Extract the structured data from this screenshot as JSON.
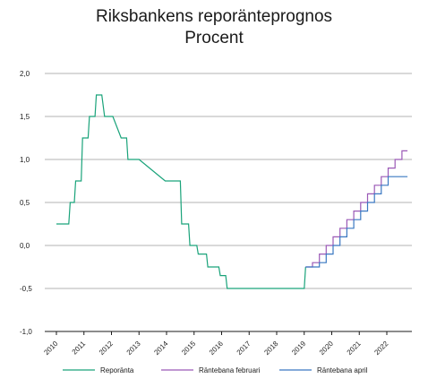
{
  "chart_data": {
    "type": "line",
    "title": "Riksbankens reporänteprognos",
    "subtitle": "Procent",
    "xlabel": "",
    "ylabel": "",
    "xlim": [
      2010,
      2022.5
    ],
    "ylim": [
      -1.0,
      2.0
    ],
    "yticks": [
      -1.0,
      -0.5,
      0.0,
      0.5,
      1.0,
      1.5,
      2.0
    ],
    "ytick_labels": [
      "-1,0",
      "-0,5",
      "0,0",
      "0,5",
      "1,0",
      "1,5",
      "2,0"
    ],
    "xticks": [
      2010,
      2011,
      2012,
      2013,
      2014,
      2015,
      2016,
      2017,
      2018,
      2019,
      2020,
      2021,
      2022
    ],
    "xtick_labels": [
      "2010",
      "2011",
      "2012",
      "2013",
      "2014",
      "2015",
      "2016",
      "2017",
      "2018",
      "2019",
      "2020",
      "2021",
      "2022"
    ],
    "grid": "horizontal",
    "legend_position": "bottom",
    "series": [
      {
        "name": "Reporänta",
        "color": "#1aa37a",
        "points": [
          [
            2010.0,
            0.25
          ],
          [
            2010.45,
            0.25
          ],
          [
            2010.5,
            0.5
          ],
          [
            2010.65,
            0.5
          ],
          [
            2010.7,
            0.75
          ],
          [
            2010.9,
            0.75
          ],
          [
            2010.95,
            1.25
          ],
          [
            2011.15,
            1.25
          ],
          [
            2011.2,
            1.5
          ],
          [
            2011.4,
            1.5
          ],
          [
            2011.45,
            1.75
          ],
          [
            2011.55,
            1.75
          ],
          [
            2011.65,
            1.75
          ],
          [
            2011.75,
            1.5
          ],
          [
            2011.95,
            1.5
          ],
          [
            2012.0,
            1.5
          ],
          [
            2012.05,
            1.5
          ],
          [
            2012.35,
            1.25
          ],
          [
            2012.55,
            1.25
          ],
          [
            2012.6,
            1.0
          ],
          [
            2012.95,
            1.0
          ],
          [
            2013.0,
            1.0
          ],
          [
            2013.95,
            0.75
          ],
          [
            2014.5,
            0.75
          ],
          [
            2014.55,
            0.25
          ],
          [
            2014.8,
            0.25
          ],
          [
            2014.85,
            0.0
          ],
          [
            2015.1,
            0.0
          ],
          [
            2015.15,
            -0.1
          ],
          [
            2015.45,
            -0.1
          ],
          [
            2015.5,
            -0.25
          ],
          [
            2015.9,
            -0.25
          ],
          [
            2015.95,
            -0.35
          ],
          [
            2016.15,
            -0.35
          ],
          [
            2016.2,
            -0.5
          ],
          [
            2019.0,
            -0.5
          ],
          [
            2019.05,
            -0.25
          ]
        ]
      },
      {
        "name": "Räntebana februari",
        "color": "#9b59b6",
        "points": [
          [
            2019.05,
            -0.25
          ],
          [
            2019.3,
            -0.25
          ],
          [
            2019.3,
            -0.2
          ],
          [
            2019.55,
            -0.2
          ],
          [
            2019.55,
            -0.1
          ],
          [
            2019.8,
            -0.1
          ],
          [
            2019.8,
            0.0
          ],
          [
            2020.05,
            0.0
          ],
          [
            2020.05,
            0.1
          ],
          [
            2020.3,
            0.1
          ],
          [
            2020.3,
            0.2
          ],
          [
            2020.55,
            0.2
          ],
          [
            2020.55,
            0.3
          ],
          [
            2020.8,
            0.3
          ],
          [
            2020.8,
            0.4
          ],
          [
            2021.05,
            0.4
          ],
          [
            2021.05,
            0.5
          ],
          [
            2021.3,
            0.5
          ],
          [
            2021.3,
            0.6
          ],
          [
            2021.55,
            0.6
          ],
          [
            2021.55,
            0.7
          ],
          [
            2021.8,
            0.7
          ],
          [
            2021.8,
            0.8
          ],
          [
            2022.05,
            0.8
          ],
          [
            2022.05,
            0.9
          ],
          [
            2022.3,
            0.9
          ],
          [
            2022.3,
            1.0
          ],
          [
            2022.55,
            1.0
          ],
          [
            2022.55,
            1.1
          ],
          [
            2022.75,
            1.1
          ]
        ]
      },
      {
        "name": "Räntebana april",
        "color": "#3a78c2",
        "points": [
          [
            2019.05,
            -0.25
          ],
          [
            2019.55,
            -0.25
          ],
          [
            2019.55,
            -0.2
          ],
          [
            2019.8,
            -0.2
          ],
          [
            2019.8,
            -0.1
          ],
          [
            2020.05,
            -0.1
          ],
          [
            2020.05,
            0.0
          ],
          [
            2020.3,
            0.0
          ],
          [
            2020.3,
            0.1
          ],
          [
            2020.55,
            0.1
          ],
          [
            2020.55,
            0.2
          ],
          [
            2020.8,
            0.2
          ],
          [
            2020.8,
            0.3
          ],
          [
            2021.05,
            0.3
          ],
          [
            2021.05,
            0.4
          ],
          [
            2021.3,
            0.4
          ],
          [
            2021.3,
            0.5
          ],
          [
            2021.55,
            0.5
          ],
          [
            2021.55,
            0.6
          ],
          [
            2021.8,
            0.6
          ],
          [
            2021.8,
            0.7
          ],
          [
            2022.05,
            0.7
          ],
          [
            2022.05,
            0.8
          ],
          [
            2022.3,
            0.8
          ],
          [
            2022.75,
            0.8
          ]
        ]
      }
    ]
  }
}
